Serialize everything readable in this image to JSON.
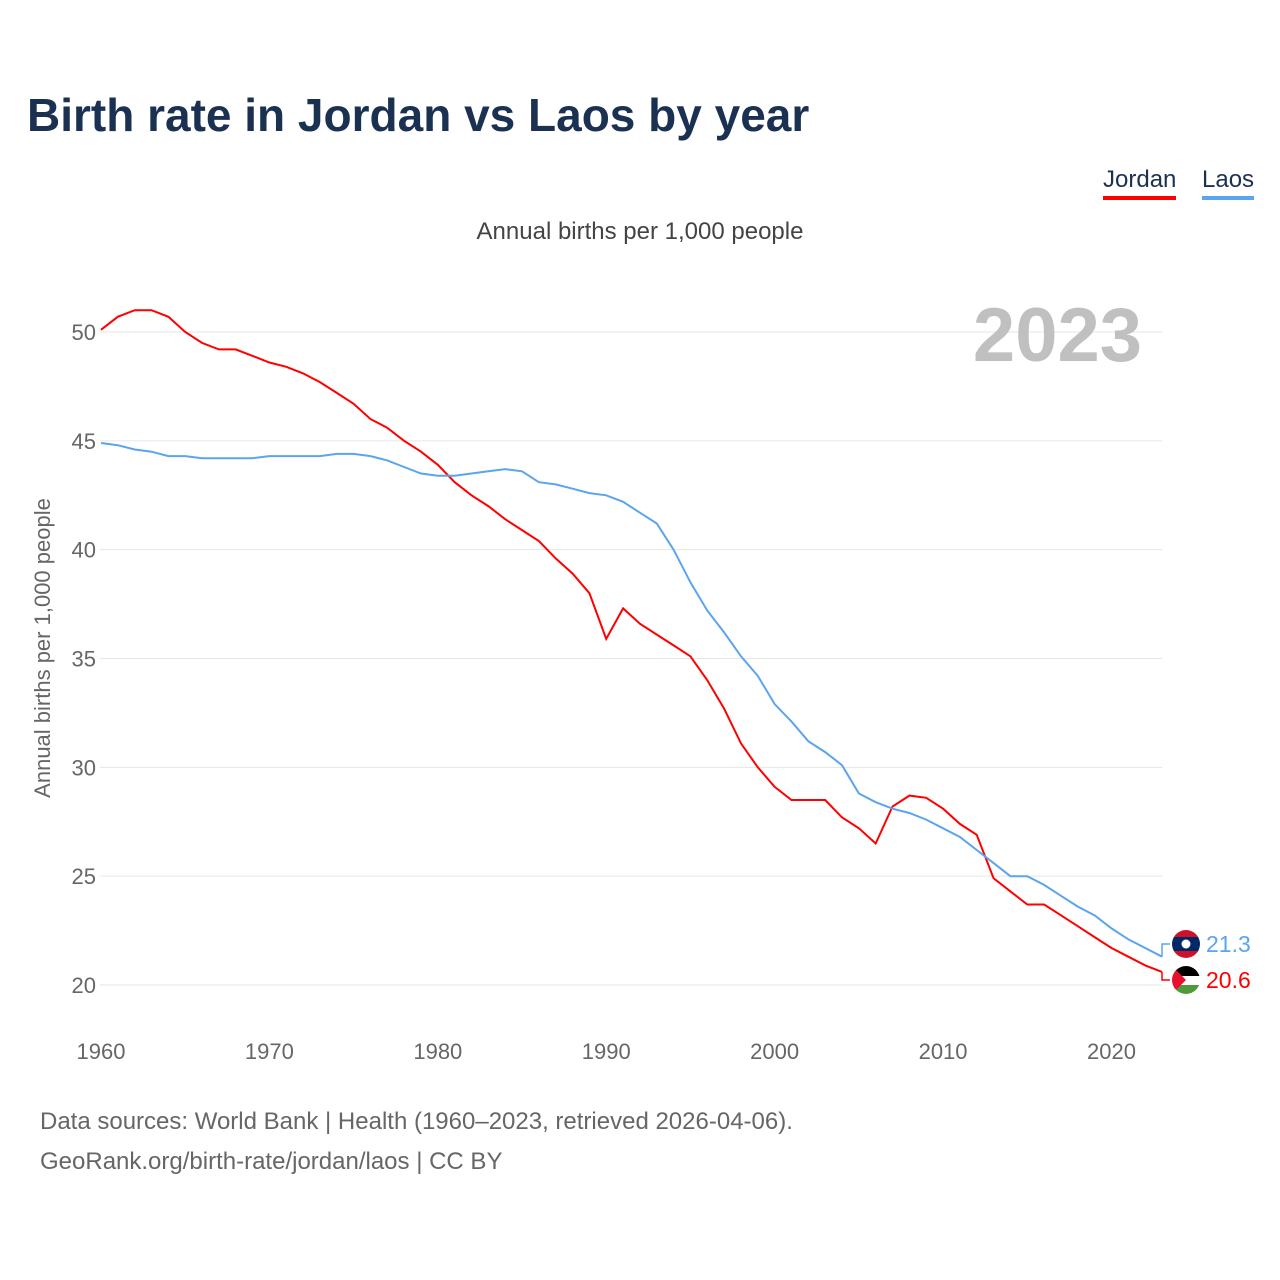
{
  "chart_data": {
    "type": "line",
    "title": "Birth rate in Jordan vs Laos by year",
    "subtitle": "Annual births per 1,000 people",
    "ylabel": "Annual births per 1,000 people",
    "xlabel": "",
    "current_year": "2023",
    "xlim": [
      1960,
      2023
    ],
    "ylim": [
      20,
      50
    ],
    "yticks": [
      20,
      25,
      30,
      35,
      40,
      45,
      50
    ],
    "xticks": [
      1960,
      1970,
      1980,
      1990,
      2000,
      2010,
      2020
    ],
    "grid": true,
    "legend_placement": "top-right",
    "x_start": 1960,
    "series": [
      {
        "name": "Jordan",
        "color": "#ff0000",
        "end_label": "20.6",
        "values": [
          50.1,
          50.7,
          51.0,
          51.0,
          50.7,
          50.0,
          49.5,
          49.2,
          49.2,
          48.9,
          48.6,
          48.4,
          48.1,
          47.7,
          47.2,
          46.7,
          46.0,
          45.6,
          45.0,
          44.5,
          43.9,
          43.1,
          42.5,
          42.0,
          41.4,
          40.9,
          40.4,
          39.6,
          38.9,
          38.0,
          35.9,
          37.3,
          36.6,
          36.1,
          35.6,
          35.1,
          34.0,
          32.7,
          31.1,
          30.0,
          29.1,
          28.5,
          28.5,
          28.5,
          27.7,
          27.2,
          26.5,
          28.2,
          28.7,
          28.6,
          28.1,
          27.4,
          26.9,
          24.9,
          24.3,
          23.7,
          23.7,
          23.2,
          22.7,
          22.2,
          21.7,
          21.3,
          20.9,
          20.6
        ]
      },
      {
        "name": "Laos",
        "color": "#5ba4ee",
        "end_label": "21.3",
        "values": [
          44.9,
          44.8,
          44.6,
          44.5,
          44.3,
          44.3,
          44.2,
          44.2,
          44.2,
          44.2,
          44.3,
          44.3,
          44.3,
          44.3,
          44.4,
          44.4,
          44.3,
          44.1,
          43.8,
          43.5,
          43.4,
          43.4,
          43.5,
          43.6,
          43.7,
          43.6,
          43.1,
          43.0,
          42.8,
          42.6,
          42.5,
          42.2,
          41.7,
          41.2,
          40.0,
          38.5,
          37.2,
          36.2,
          35.1,
          34.2,
          32.9,
          32.1,
          31.2,
          30.7,
          30.1,
          28.8,
          28.4,
          28.1,
          27.9,
          27.6,
          27.2,
          26.8,
          26.2,
          25.6,
          25.0,
          25.0,
          24.6,
          24.1,
          23.6,
          23.2,
          22.6,
          22.1,
          21.7,
          21.3
        ]
      }
    ]
  },
  "footer": {
    "line1": "Data sources: World Bank | Health (1960–2023, retrieved 2026-04-06).",
    "line2": "GeoRank.org/birth-rate/jordan/laos | CC BY"
  }
}
